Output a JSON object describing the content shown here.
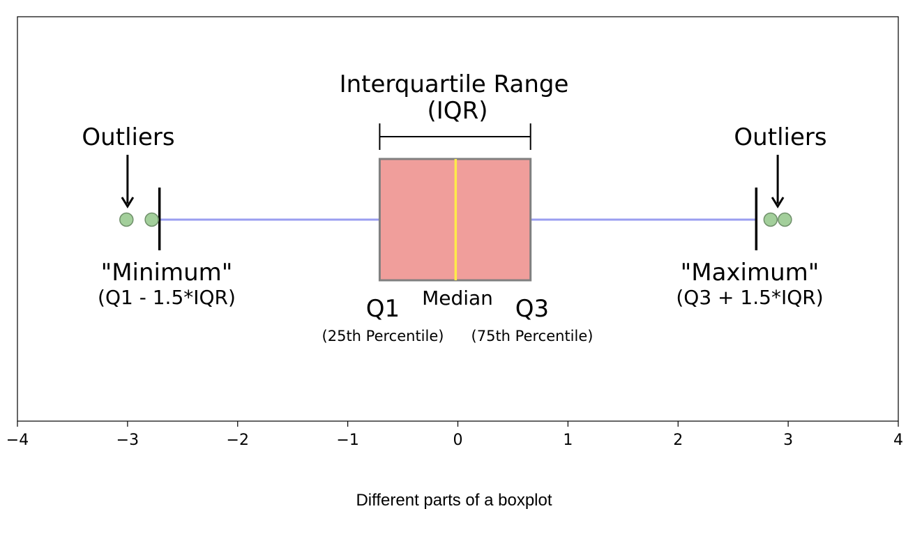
{
  "chart_data": {
    "type": "boxplot",
    "caption": "Different parts of a boxplot",
    "xlim": [
      -4,
      4
    ],
    "x_ticks": [
      -4,
      -3,
      -2,
      -1,
      0,
      1,
      2,
      3,
      4
    ],
    "x_tick_labels": [
      "−4",
      "−3",
      "−2",
      "−1",
      "0",
      "1",
      "2",
      "3",
      "4"
    ],
    "grid": false,
    "box": {
      "q1": -0.71,
      "median": -0.02,
      "q3": 0.66,
      "whisker_low": -2.71,
      "whisker_high": 2.71,
      "outliers": [
        -3.01,
        -2.78,
        2.84,
        2.97
      ]
    },
    "labels": {
      "iqr_title": "Interquartile Range",
      "iqr_abbrev": "(IQR)",
      "outliers_left": "Outliers",
      "outliers_right": "Outliers",
      "minimum": "\"Minimum\"",
      "minimum_formula": "(Q1 - 1.5*IQR)",
      "maximum": "\"Maximum\"",
      "maximum_formula": "(Q3 + 1.5*IQR)",
      "median": "Median",
      "q1": "Q1",
      "q1_desc": "(25th Percentile)",
      "q3": "Q3",
      "q3_desc": "(75th Percentile)"
    },
    "colors": {
      "box_fill": "#f09e9b",
      "box_edge": "#808080",
      "median_line": "#ffea4a",
      "whisker": "#9a9ef0",
      "cap": "#000000",
      "outlier_fill": "#a3cf9b",
      "outlier_edge": "#6f8f6a"
    }
  }
}
